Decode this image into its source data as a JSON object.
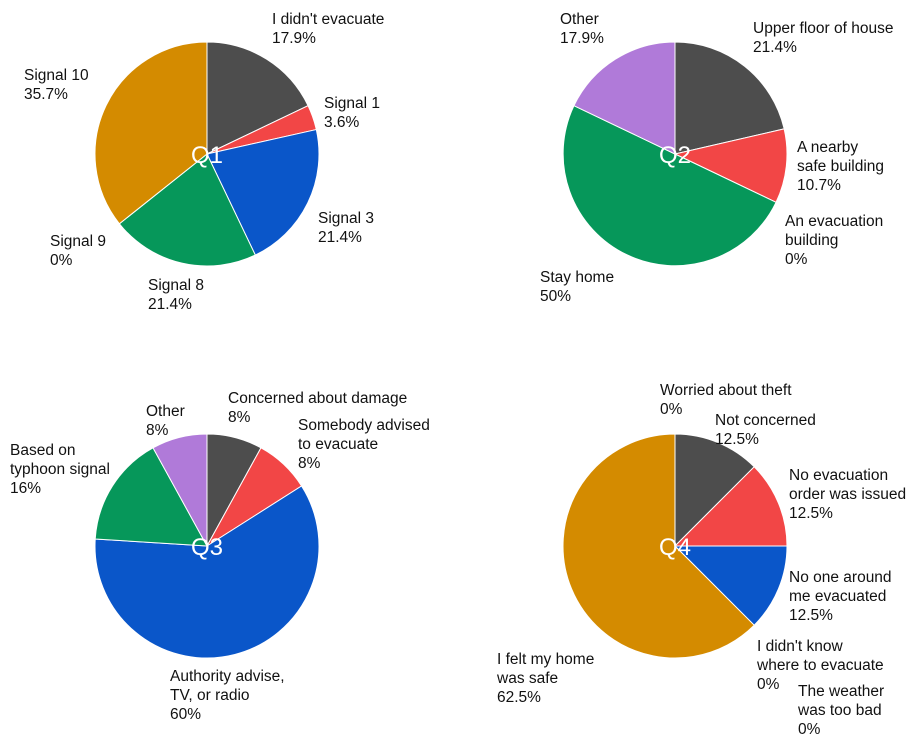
{
  "chart_data": [
    {
      "type": "pie",
      "title": "",
      "center_label": "Q1",
      "slices": [
        {
          "label": [
            "I didn't evacuate"
          ],
          "pct": "17.9%",
          "value": 17.9,
          "color": "#4d4d4d"
        },
        {
          "label": [
            "Signal 1"
          ],
          "pct": "3.6%",
          "value": 3.6,
          "color": "#f24646"
        },
        {
          "label": [
            "Signal 3"
          ],
          "pct": "21.4%",
          "value": 21.4,
          "color": "#0a56c9"
        },
        {
          "label": [
            "Signal 8"
          ],
          "pct": "21.4%",
          "value": 21.4,
          "color": "#06975a"
        },
        {
          "label": [
            "Signal 9"
          ],
          "pct": "0%",
          "value": 0,
          "color": "#9aa0a6"
        },
        {
          "label": [
            "Signal 10"
          ],
          "pct": "35.7%",
          "value": 35.7,
          "color": "#d48b00"
        }
      ]
    },
    {
      "type": "pie",
      "title": "",
      "center_label": "Q2",
      "slices": [
        {
          "label": [
            "Upper floor of house"
          ],
          "pct": "21.4%",
          "value": 21.4,
          "color": "#4d4d4d"
        },
        {
          "label": [
            "A nearby",
            "safe building"
          ],
          "pct": "10.7%",
          "value": 10.7,
          "color": "#f24646"
        },
        {
          "label": [
            "An evacuation",
            "building"
          ],
          "pct": "0%",
          "value": 0,
          "color": "#0a56c9"
        },
        {
          "label": [
            "Stay home"
          ],
          "pct": "50%",
          "value": 50,
          "color": "#06975a"
        },
        {
          "label": [
            "Other"
          ],
          "pct": "17.9%",
          "value": 17.9,
          "color": "#b07ad9"
        }
      ]
    },
    {
      "type": "pie",
      "title": "",
      "center_label": "Q3",
      "slices": [
        {
          "label": [
            "Concerned about damage"
          ],
          "pct": "8%",
          "value": 8,
          "color": "#4d4d4d"
        },
        {
          "label": [
            "Somebody advised",
            "to evacuate"
          ],
          "pct": "8%",
          "value": 8,
          "color": "#f24646"
        },
        {
          "label": [
            "Authority advise,",
            "TV, or radio"
          ],
          "pct": "60%",
          "value": 60,
          "color": "#0a56c9"
        },
        {
          "label": [
            "Based on",
            "typhoon signal"
          ],
          "pct": "16%",
          "value": 16,
          "color": "#06975a"
        },
        {
          "label": [
            "Other"
          ],
          "pct": "8%",
          "value": 8,
          "color": "#b07ad9"
        }
      ]
    },
    {
      "type": "pie",
      "title": "",
      "center_label": "Q4",
      "slices": [
        {
          "label": [
            "Worried about theft"
          ],
          "pct": "0%",
          "value": 0,
          "color": "#9aa0a6"
        },
        {
          "label": [
            "Not concerned"
          ],
          "pct": "12.5%",
          "value": 12.5,
          "color": "#4d4d4d"
        },
        {
          "label": [
            "No evacuation",
            "order was issued"
          ],
          "pct": "12.5%",
          "value": 12.5,
          "color": "#f24646"
        },
        {
          "label": [
            "No one around",
            "me evacuated"
          ],
          "pct": "12.5%",
          "value": 12.5,
          "color": "#0a56c9"
        },
        {
          "label": [
            "I didn't know",
            "where to evacuate"
          ],
          "pct": "0%",
          "value": 0,
          "color": "#06975a"
        },
        {
          "label": [
            "The weather",
            "was too bad"
          ],
          "pct": "0%",
          "value": 0,
          "color": "#b07ad9"
        },
        {
          "label": [
            "I felt my home",
            "was safe"
          ],
          "pct": "62.5%",
          "value": 62.5,
          "color": "#d48b00"
        }
      ]
    }
  ]
}
